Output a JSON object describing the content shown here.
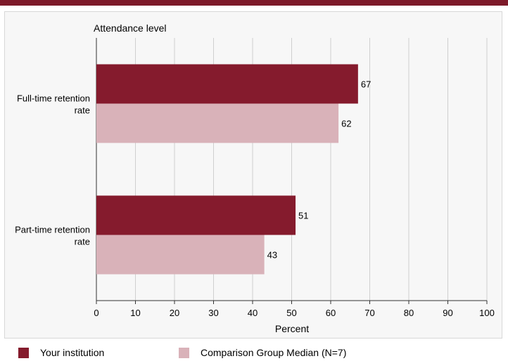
{
  "chart_data": {
    "type": "bar",
    "orientation": "horizontal",
    "title": "Attendance level",
    "categories": [
      "Full-time retention rate",
      "Part-time retention rate"
    ],
    "category_lines": [
      [
        "Full-time retention",
        "rate"
      ],
      [
        "Part-time retention",
        "rate"
      ]
    ],
    "series": [
      {
        "name": "Your institution",
        "values": [
          67,
          51
        ],
        "color": "#851b2d"
      },
      {
        "name": "Comparison Group Median (N=7)",
        "values": [
          62,
          43
        ],
        "color": "#d9b2b9"
      }
    ],
    "xlabel": "Percent",
    "xlim": [
      0,
      100
    ],
    "xticks": [
      0,
      10,
      20,
      30,
      40,
      50,
      60,
      70,
      80,
      90,
      100
    ],
    "grid": true,
    "legend": "bottom"
  }
}
